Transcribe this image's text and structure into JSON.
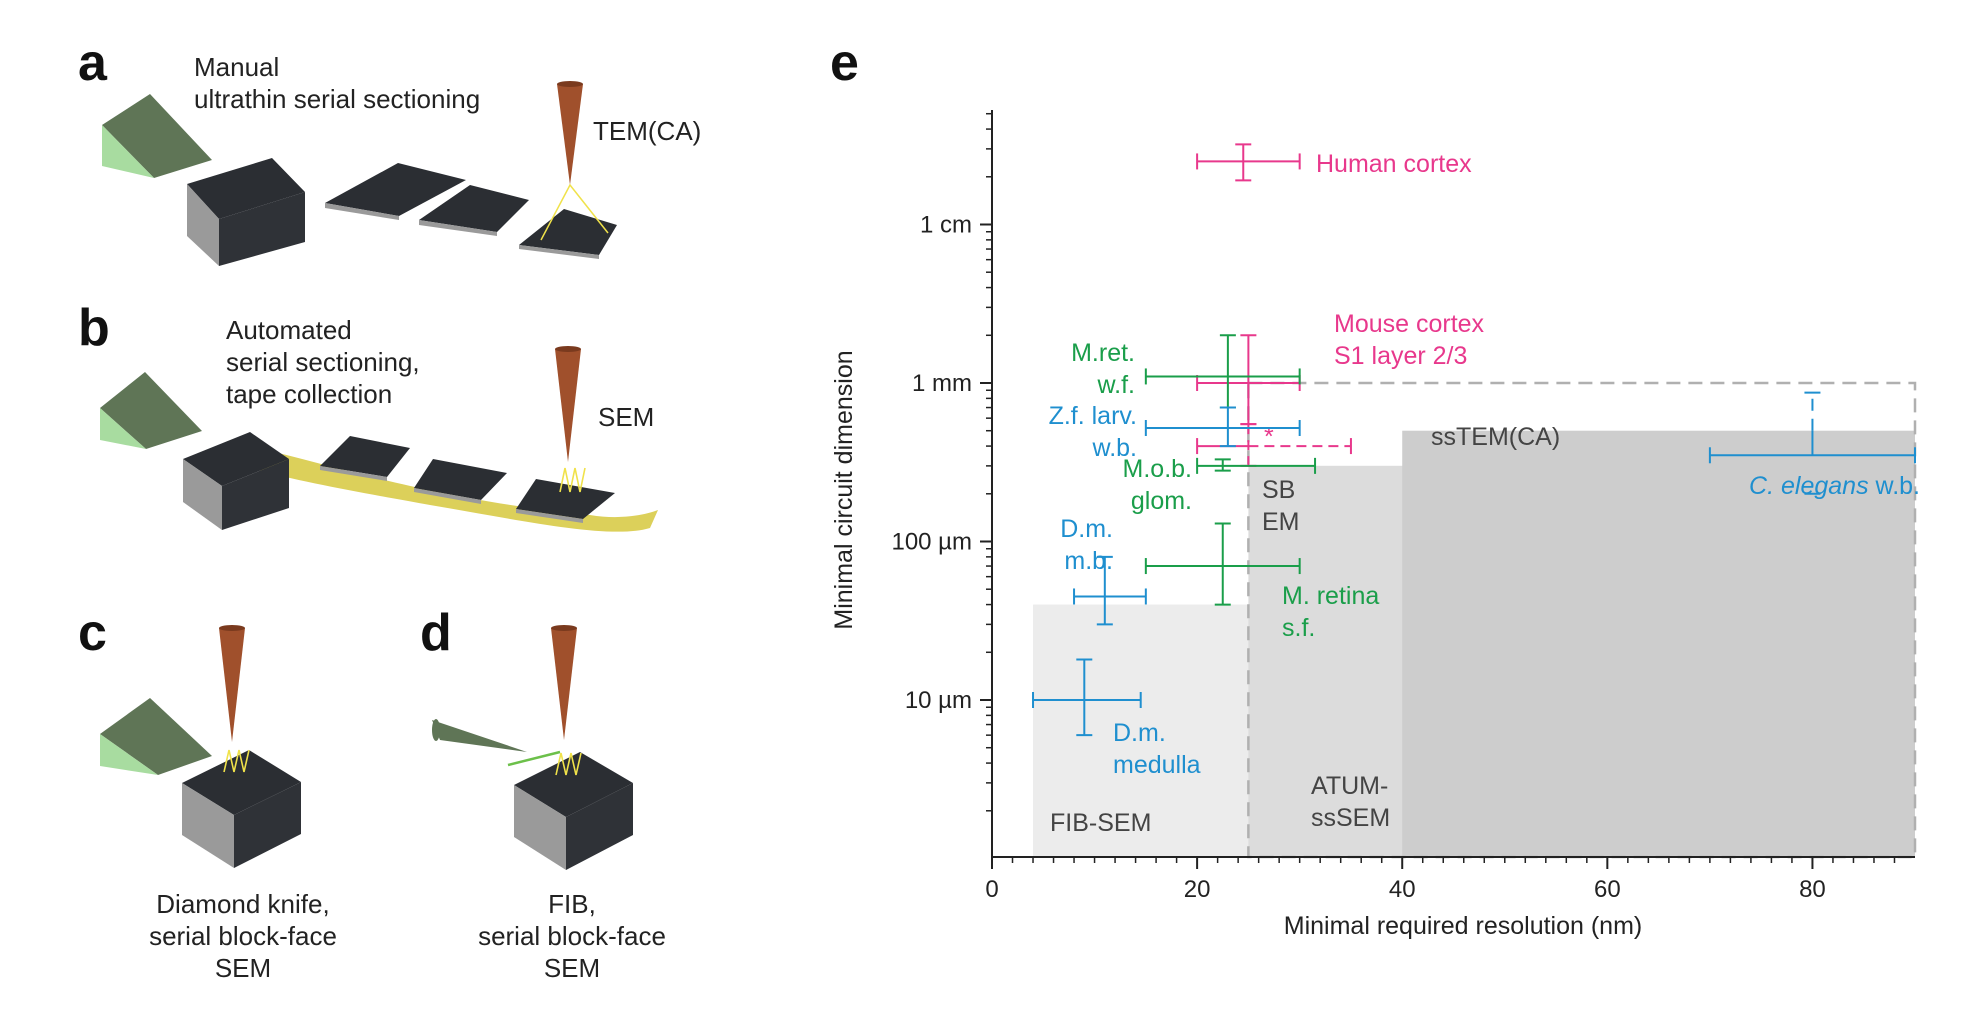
{
  "panels": {
    "a": {
      "letter": "a",
      "caption": [
        "Manual",
        "ultrathin serial sectioning"
      ],
      "instrument": "TEM(CA)"
    },
    "b": {
      "letter": "b",
      "caption": [
        "Automated",
        "serial sectioning,",
        "tape collection"
      ],
      "instrument": "SEM"
    },
    "c": {
      "letter": "c",
      "caption": [
        "Diamond knife,",
        "serial block-face",
        "SEM"
      ]
    },
    "d": {
      "letter": "d",
      "caption": [
        "FIB,",
        "serial block-face",
        "SEM"
      ]
    },
    "e": {
      "letter": "e"
    }
  },
  "colors": {
    "knife": "#5f7556",
    "knife_face": "#a8dca0",
    "block_top": "#2b2e33",
    "block_front": "#9a9a9a",
    "block_side": "#2f3237",
    "tape": "#dcd05a",
    "beam": "#a0502c",
    "zigzag": "#f0e24a",
    "pink": "#e8388c",
    "green": "#1a9e4a",
    "blue": "#1f8fcf",
    "region_light": "#ececec",
    "region_mid": "#dcdcdc",
    "region_dark": "#cdcdcd"
  },
  "chart_data": {
    "type": "scatter",
    "title": "",
    "xlabel": "Minimal required resolution (nm)",
    "ylabel": "Minimal circuit dimension",
    "xlim": [
      0,
      90
    ],
    "x_ticks": [
      0,
      20,
      40,
      60,
      80
    ],
    "ylim_um": [
      1,
      50000
    ],
    "y_scale": "log",
    "y_ticks": [
      {
        "value_um": 10,
        "label": "10 µm"
      },
      {
        "value_um": 100,
        "label": "100 µm"
      },
      {
        "value_um": 1000,
        "label": "1 mm"
      },
      {
        "value_um": 10000,
        "label": "1 cm"
      }
    ],
    "regions": [
      {
        "name": "FIB-SEM",
        "label": [
          "FIB-SEM"
        ],
        "x_range": [
          4,
          90
        ],
        "y_max_um": 40,
        "shade": "light"
      },
      {
        "name": "SBEM",
        "label": [
          "SB",
          "EM"
        ],
        "x_range": [
          25,
          90
        ],
        "y_max_um": 300,
        "shade": "mid"
      },
      {
        "name": "ATUM-ssSEM",
        "label": [
          "ATUM-",
          "ssSEM"
        ],
        "x_range": [
          30,
          90
        ],
        "y_max_um": 300,
        "shade": "mid"
      },
      {
        "name": "ssTEM(CA)",
        "label": [
          "ssTEM(CA)"
        ],
        "x_range": [
          40,
          90
        ],
        "y_max_um": 500,
        "shade": "dark"
      }
    ],
    "outline_box": {
      "x_range": [
        25,
        90
      ],
      "y_max_um": 1000
    },
    "series": [
      {
        "name": "Human cortex",
        "label": [
          "Human cortex"
        ],
        "color": "pink",
        "x": 24.5,
        "xerr": [
          20,
          30
        ],
        "y_um": 25000,
        "yerr": [
          19000,
          32000
        ]
      },
      {
        "name": "Mouse cortex S1 layer 2/3",
        "label": [
          "Mouse cortex",
          "S1 layer 2/3"
        ],
        "color": "pink",
        "x": 25,
        "xerr": [
          20,
          30
        ],
        "y_um": 1000,
        "yerr": [
          550,
          2000
        ]
      },
      {
        "name": "Mouse cortex S1 layer 2/3 *",
        "label": [
          "*"
        ],
        "color": "pink",
        "x": 25,
        "xerr": [
          20,
          35
        ],
        "y_um": 400,
        "yerr": [
          300,
          550
        ],
        "dashed": true
      },
      {
        "name": "M.ret. w.f.",
        "label": [
          "M.ret.",
          "w.f."
        ],
        "color": "green",
        "x": 23,
        "xerr": [
          15,
          30
        ],
        "y_um": 1100,
        "yerr": [
          700,
          2000
        ]
      },
      {
        "name": "M.o.b. glom.",
        "label": [
          "M.o.b.",
          "glom."
        ],
        "color": "green",
        "x": 22.5,
        "xerr": [
          20,
          31.5
        ],
        "y_um": 300,
        "yerr": [
          280,
          330
        ]
      },
      {
        "name": "M. retina s.f.",
        "label": [
          "M. retina",
          "s.f."
        ],
        "color": "green",
        "x": 22.5,
        "xerr": [
          15,
          30
        ],
        "y_um": 70,
        "yerr": [
          40,
          130
        ]
      },
      {
        "name": "Z.f. larv. w.b.",
        "label": [
          "Z.f. larv.",
          "w.b."
        ],
        "color": "blue",
        "x": 23,
        "xerr": [
          15,
          30
        ],
        "y_um": 520,
        "yerr": [
          400,
          700
        ]
      },
      {
        "name": "D.m. m.b.",
        "label": [
          "D.m.",
          "m.b."
        ],
        "color": "blue",
        "x": 11,
        "xerr": [
          8,
          15
        ],
        "y_um": 45,
        "yerr": [
          30,
          80
        ]
      },
      {
        "name": "D.m. medulla",
        "label": [
          "D.m.",
          "medulla"
        ],
        "color": "blue",
        "x": 9,
        "xerr": [
          4,
          14.5
        ],
        "y_um": 10,
        "yerr": [
          6,
          18
        ]
      },
      {
        "name": "C. elegans w.b.",
        "label": [
          "C. elegans w.b."
        ],
        "color": "blue",
        "x": 80,
        "xerr": [
          70,
          90
        ],
        "y_um": 350,
        "yerr": [
          200,
          870
        ]
      }
    ]
  }
}
